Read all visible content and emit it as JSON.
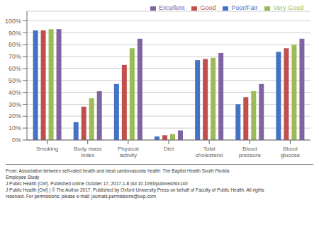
{
  "chart_data": {
    "type": "bar",
    "categories": [
      "Smoking",
      "Body mass index",
      "Physical activity",
      "Diet",
      "Total cholesterol",
      "Blood pressure",
      "Blood glucose"
    ],
    "series": [
      {
        "name": "Poor/Fair",
        "color": "#4472C4",
        "values": [
          92,
          15,
          47,
          3,
          67,
          30,
          74
        ]
      },
      {
        "name": "Good",
        "color": "#C0504D",
        "values": [
          92,
          28,
          63,
          4,
          68,
          36,
          77
        ]
      },
      {
        "name": "Very Good",
        "color": "#9BBB59",
        "values": [
          93,
          35,
          77,
          5,
          69,
          41,
          80
        ]
      },
      {
        "name": "Excellent",
        "color": "#8064A2",
        "values": [
          93,
          41,
          85,
          8,
          73,
          47,
          85
        ]
      }
    ],
    "ylim": [
      0,
      108
    ],
    "yticks": [
      {
        "value": 0,
        "label": "0%"
      },
      {
        "value": 10,
        "label": "10%"
      },
      {
        "value": 20,
        "label": "20%"
      },
      {
        "value": 30,
        "label": "30%"
      },
      {
        "value": 40,
        "label": "40%"
      },
      {
        "value": 50,
        "label": "50%"
      },
      {
        "value": 60,
        "label": "60%"
      },
      {
        "value": 70,
        "label": "70%"
      },
      {
        "value": 80,
        "label": "80%"
      },
      {
        "value": 90,
        "label": "90%"
      },
      {
        "value": 100,
        "label": "100%"
      }
    ],
    "grid": true,
    "legend": "upper right",
    "annotations": [
      "From: Association between self-rated health and ideal cardiovascular health: The Baptist Health South Florida",
      "Employee Study",
      "J Public Health (Oxf). Published online  October 17, 2017.1-8 doi:10.1093/pubmed/fdx140",
      "J Public Health (Oxf) | © The Author 2017. Published by Oxford University Press on behalf of Faculty of Public Health. All rights",
      "reserved. For permissions, please e-mail: journals.permissions@oup.com"
    ]
  }
}
